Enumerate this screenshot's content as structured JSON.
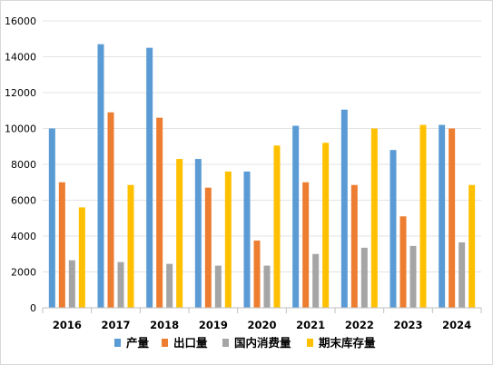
{
  "chart_data": {
    "type": "bar",
    "categories": [
      "2016",
      "2017",
      "2018",
      "2019",
      "2020",
      "2021",
      "2022",
      "2023",
      "2024"
    ],
    "series": [
      {
        "name": "产量",
        "color": "#5b9bd5",
        "values": [
          10000,
          14700,
          14500,
          8300,
          7600,
          10150,
          11050,
          8800,
          10200
        ]
      },
      {
        "name": "出口量",
        "color": "#ed7d31",
        "values": [
          7000,
          10900,
          10600,
          6700,
          3750,
          7000,
          6850,
          5100,
          10000
        ]
      },
      {
        "name": "国内消费量",
        "color": "#a5a5a5",
        "values": [
          2650,
          2550,
          2450,
          2350,
          2350,
          3000,
          3350,
          3450,
          3650
        ]
      },
      {
        "name": "期末库存量",
        "color": "#ffc000",
        "values": [
          5600,
          6850,
          8300,
          7600,
          9050,
          9200,
          10000,
          10200,
          6850
        ]
      }
    ],
    "y_ticks": [
      "0",
      "2000",
      "4000",
      "6000",
      "8000",
      "10000",
      "12000",
      "14000",
      "16000"
    ],
    "ylim": [
      0,
      16000
    ],
    "grid": true,
    "legend_position": "bottom"
  }
}
